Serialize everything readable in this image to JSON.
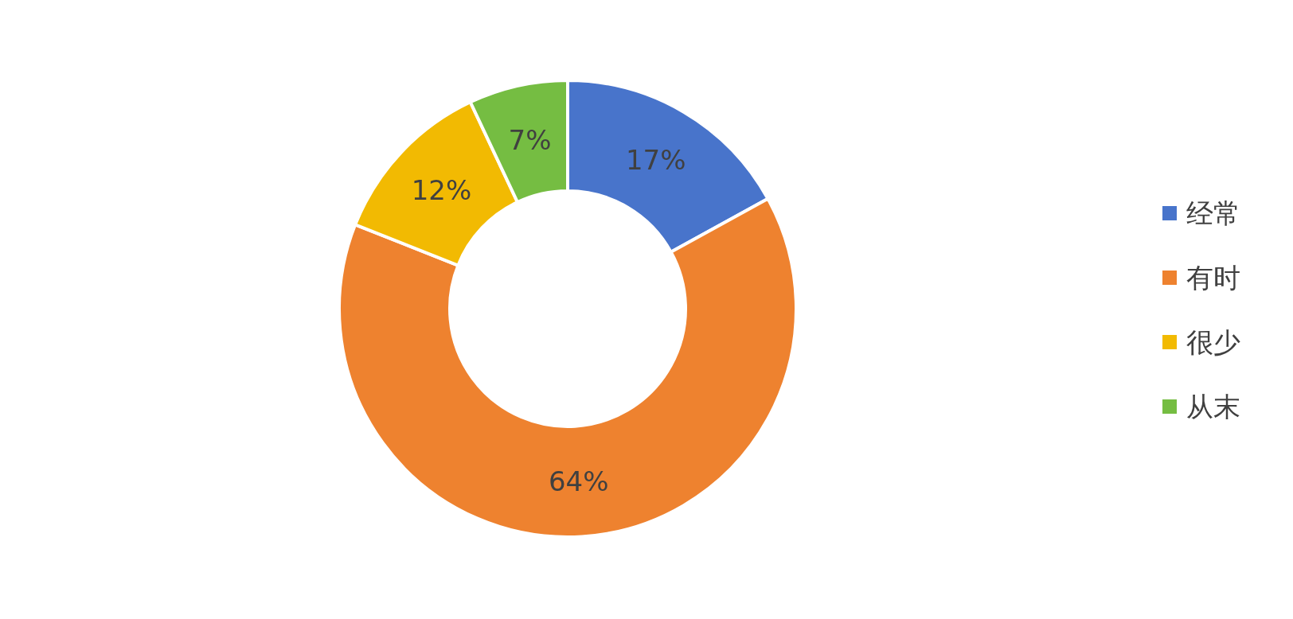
{
  "chart_data": {
    "type": "donut",
    "categories": [
      "经常",
      "有时",
      "很少",
      "从末"
    ],
    "values": [
      17,
      64,
      12,
      7
    ],
    "colors": [
      "#4874cb",
      "#ee822f",
      "#f2ba02",
      "#75bd42"
    ],
    "value_labels": [
      "17%",
      "64%",
      "12%",
      "7%"
    ],
    "legend": "right"
  }
}
